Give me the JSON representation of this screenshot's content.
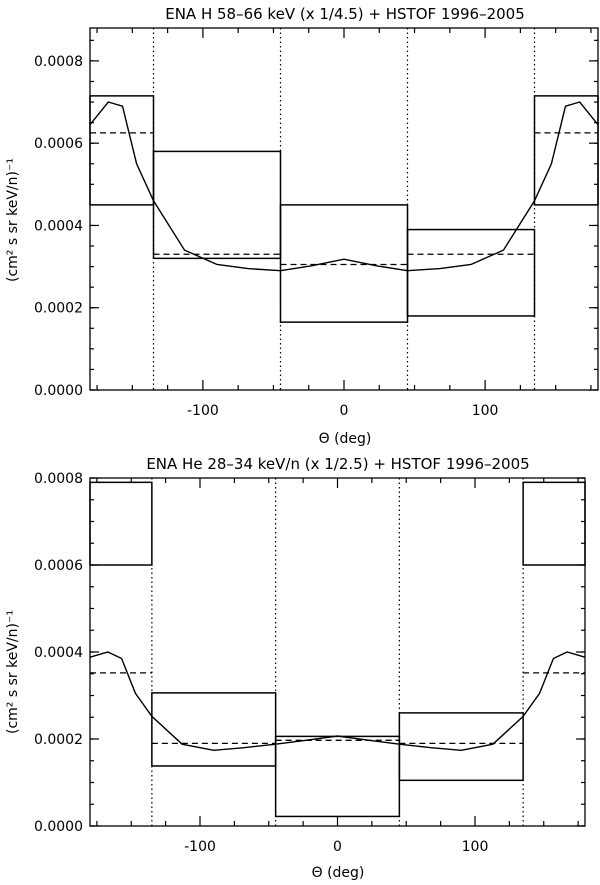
{
  "chart_data": [
    {
      "type": "line",
      "title": "ENA H 58–66 keV (x 1/4.5) + HSTOF 1996–2005",
      "xlabel": "Θ (deg)",
      "ylabel": "(cm² s sr keV/n)⁻¹",
      "xlim": [
        -180,
        180
      ],
      "ylim": [
        0,
        0.00088
      ],
      "xticks": [
        -100,
        0,
        100
      ],
      "xtick_labels": [
        "-100",
        "0",
        "100"
      ],
      "yticks": [
        0,
        0.0002,
        0.0004,
        0.0006,
        0.0008
      ],
      "ytick_labels": [
        "0.0000",
        "0.0002",
        "0.0004",
        "0.0006",
        "0.0008"
      ],
      "dotted_vlines": [
        -135,
        -45,
        45,
        135
      ],
      "boxes": [
        {
          "x0": -180,
          "x1": -135,
          "y0": 0.00045,
          "y1": 0.000715
        },
        {
          "x0": -135,
          "x1": -45,
          "y0": 0.00032,
          "y1": 0.00058
        },
        {
          "x0": -45,
          "x1": 45,
          "y0": 0.000165,
          "y1": 0.00045
        },
        {
          "x0": 45,
          "x1": 135,
          "y0": 0.00018,
          "y1": 0.00039
        },
        {
          "x0": 135,
          "x1": 180,
          "y0": 0.00045,
          "y1": 0.000715
        }
      ],
      "dashed_segments": [
        {
          "x0": -180,
          "x1": -135,
          "y": 0.000625
        },
        {
          "x0": -135,
          "x1": -45,
          "y": 0.00033
        },
        {
          "x0": -45,
          "x1": 45,
          "y": 0.000305
        },
        {
          "x0": 45,
          "x1": 135,
          "y": 0.00033
        },
        {
          "x0": 135,
          "x1": 180,
          "y": 0.000625
        }
      ],
      "series": [
        {
          "x": [
            -180,
            -167,
            -157,
            -147,
            -135,
            -113,
            -90,
            -68,
            -45,
            -23,
            0,
            23,
            45,
            68,
            90,
            113,
            135,
            147,
            157,
            167,
            180
          ],
          "values": [
            0.000645,
            0.0007,
            0.00069,
            0.00055,
            0.00046,
            0.00034,
            0.000305,
            0.000295,
            0.00029,
            0.000302,
            0.000318,
            0.000302,
            0.00029,
            0.000295,
            0.000305,
            0.00034,
            0.00046,
            0.00055,
            0.00069,
            0.0007,
            0.000645
          ]
        }
      ]
    },
    {
      "type": "line",
      "title": "ENA He 28–34 keV/n (x 1/2.5) + HSTOF 1996–2005",
      "xlabel": "Θ (deg)",
      "ylabel": "(cm² s sr keV/n)⁻¹",
      "xlim": [
        -180,
        180
      ],
      "ylim": [
        0,
        0.0008
      ],
      "xticks": [
        -100,
        0,
        100
      ],
      "xtick_labels": [
        "-100",
        "0",
        "100"
      ],
      "yticks": [
        0,
        0.0002,
        0.0004,
        0.0006,
        0.0008
      ],
      "ytick_labels": [
        "0.0000",
        "0.0002",
        "0.0004",
        "0.0006",
        "0.0008"
      ],
      "dotted_vlines": [
        -135,
        -45,
        45,
        135
      ],
      "boxes": [
        {
          "x0": -180,
          "x1": -135,
          "y0": 0.0006,
          "y1": 0.00079
        },
        {
          "x0": -135,
          "x1": -45,
          "y0": 0.000138,
          "y1": 0.000306
        },
        {
          "x0": -45,
          "x1": 45,
          "y0": 2.2e-05,
          "y1": 0.000206
        },
        {
          "x0": 45,
          "x1": 135,
          "y0": 0.000105,
          "y1": 0.00026
        },
        {
          "x0": 135,
          "x1": 180,
          "y0": 0.0006,
          "y1": 0.00079
        }
      ],
      "dashed_segments": [
        {
          "x0": -180,
          "x1": -135,
          "y": 0.000352
        },
        {
          "x0": -135,
          "x1": -45,
          "y": 0.00019
        },
        {
          "x0": -45,
          "x1": 45,
          "y": 0.000197
        },
        {
          "x0": 45,
          "x1": 135,
          "y": 0.00019
        },
        {
          "x0": 135,
          "x1": 180,
          "y": 0.000352
        }
      ],
      "series": [
        {
          "x": [
            -180,
            -167,
            -157,
            -147,
            -135,
            -113,
            -90,
            -68,
            -45,
            -23,
            0,
            23,
            45,
            68,
            90,
            113,
            135,
            147,
            157,
            167,
            180
          ],
          "values": [
            0.000388,
            0.0004,
            0.000385,
            0.000305,
            0.000252,
            0.000188,
            0.000174,
            0.00018,
            0.000188,
            0.000197,
            0.000207,
            0.000197,
            0.000188,
            0.00018,
            0.000174,
            0.000188,
            0.000252,
            0.000305,
            0.000385,
            0.0004,
            0.000388
          ]
        }
      ]
    }
  ]
}
